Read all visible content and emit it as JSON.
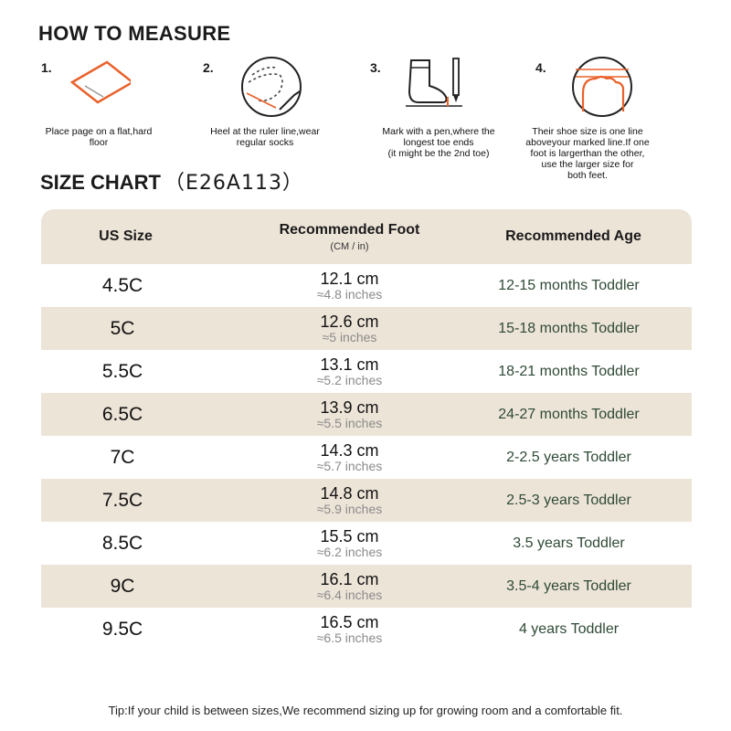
{
  "measure": {
    "title": "HOW TO MEASURE",
    "steps": [
      {
        "num": "1.",
        "text": "Place page on a flat,hard\nfloor"
      },
      {
        "num": "2.",
        "text": "Heel at the ruler line,wear\nregular socks"
      },
      {
        "num": "3.",
        "text": "Mark with a pen,where the\nlongest toe ends\n(it might be the 2nd toe)"
      },
      {
        "num": "4.",
        "text": "Their shoe size is one line\naboveyour marked line.If one\nfoot is largerthan the other,\nuse the larger size for\nboth feet."
      }
    ]
  },
  "chart": {
    "title": "SIZE CHART",
    "code": "（E26A113）",
    "headers": {
      "size": "US Size",
      "foot": "Recommended Foot",
      "foot_unit": "(CM / in)",
      "age": "Recommended Age"
    },
    "rows": [
      {
        "size": "4.5C",
        "cm": "12.1 cm",
        "inch": "≈4.8 inches",
        "age": "12-15 months Toddler"
      },
      {
        "size": "5C",
        "cm": "12.6 cm",
        "inch": "≈5 inches",
        "age": "15-18 months Toddler"
      },
      {
        "size": "5.5C",
        "cm": "13.1 cm",
        "inch": "≈5.2 inches",
        "age": "18-21 months Toddler"
      },
      {
        "size": "6.5C",
        "cm": "13.9 cm",
        "inch": "≈5.5 inches",
        "age": "24-27 months Toddler"
      },
      {
        "size": "7C",
        "cm": "14.3 cm",
        "inch": "≈5.7 inches",
        "age": "2-2.5 years Toddler"
      },
      {
        "size": "7.5C",
        "cm": "14.8 cm",
        "inch": "≈5.9 inches",
        "age": "2.5-3 years Toddler"
      },
      {
        "size": "8.5C",
        "cm": "15.5 cm",
        "inch": "≈6.2 inches",
        "age": "3.5 years Toddler"
      },
      {
        "size": "9C",
        "cm": "16.1 cm",
        "inch": "≈6.4 inches",
        "age": "3.5-4 years Toddler"
      },
      {
        "size": "9.5C",
        "cm": "16.5 cm",
        "inch": "≈6.5 inches",
        "age": "4 years Toddler"
      }
    ]
  },
  "tip": "Tip:If your child is between sizes,We recommend sizing up for growing room and a comfortable fit.",
  "colors": {
    "accent": "#e8622c",
    "band": "#ede4d8",
    "age_text": "#2f4a36"
  }
}
